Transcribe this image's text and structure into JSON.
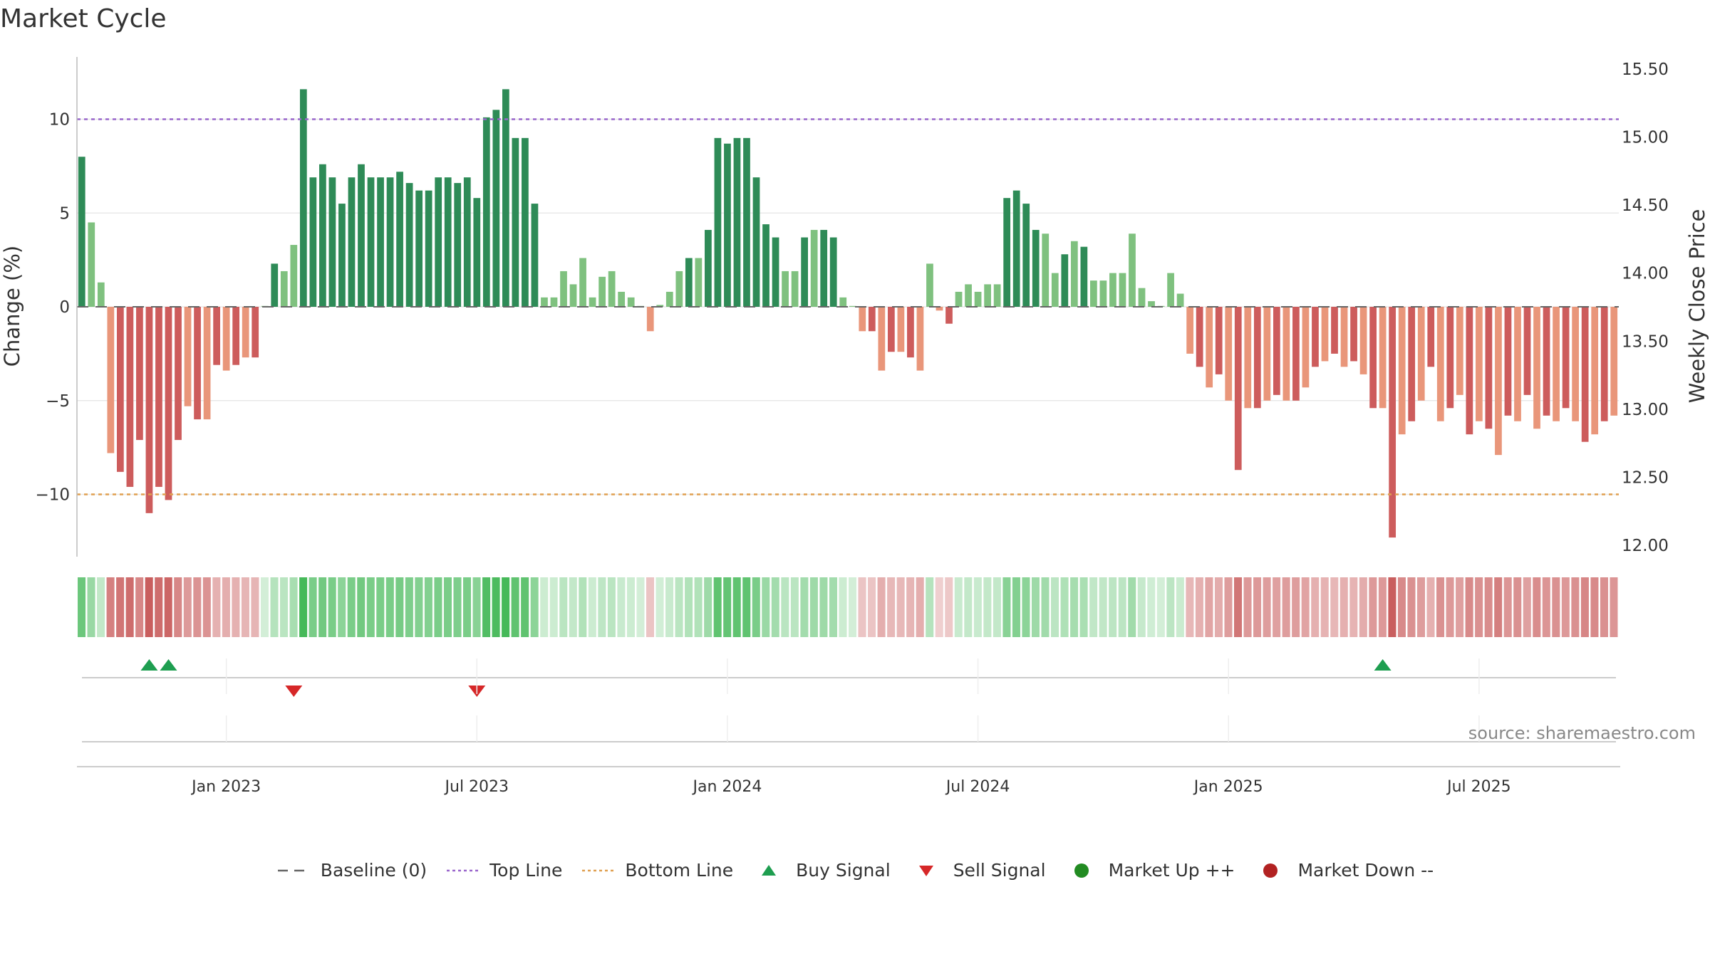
{
  "title": "Market Cycle",
  "source": "source: sharemaestro.com",
  "colors": {
    "strong_up": "#2e8b57",
    "weak_up": "#7fc17f",
    "strong_down": "#cd5c5c",
    "weak_down": "#e9967a",
    "top_line": "#9966cc",
    "bottom_line": "#e0a050",
    "baseline": "#666666",
    "buy": "#1e9e50",
    "sell": "#d62728",
    "market_up": "#228b22",
    "market_down": "#b22222"
  },
  "legend": [
    {
      "label": "Baseline (0)",
      "symbol": "dash-line",
      "color": "#666666"
    },
    {
      "label": "Top Line",
      "symbol": "dot-line",
      "color": "#9966cc"
    },
    {
      "label": "Bottom Line",
      "symbol": "dot-line",
      "color": "#e0a050"
    },
    {
      "label": "Buy Signal",
      "symbol": "triangle-up",
      "color": "#1e9e50"
    },
    {
      "label": "Sell Signal",
      "symbol": "triangle-down",
      "color": "#d62728"
    },
    {
      "label": "Market Up ++",
      "symbol": "circle",
      "color": "#228b22"
    },
    {
      "label": "Market Down --",
      "symbol": "circle",
      "color": "#b22222"
    }
  ],
  "chart_data": {
    "type": "bar",
    "title": "Market Cycle",
    "ylabel": "Change (%)",
    "y2label": "Weekly Close Price",
    "ylim": [
      -13,
      13
    ],
    "yticks": [
      10,
      5,
      0,
      -5,
      -10
    ],
    "ytick_labels": [
      "10",
      "5",
      "0",
      "−5",
      "−10"
    ],
    "y2lim": [
      12.0,
      15.5
    ],
    "y2ticks": [
      15.5,
      15.0,
      14.5,
      14.0,
      13.5,
      13.0,
      12.5,
      12.0
    ],
    "y2tick_labels": [
      "15.50",
      "15.00",
      "14.50",
      "14.00",
      "13.50",
      "13.00",
      "12.50",
      "12.00"
    ],
    "top_line": 10,
    "bottom_line": -10,
    "baseline": 0,
    "xticks": [
      {
        "label": "Jan 2023",
        "index": 15
      },
      {
        "label": "Jul 2023",
        "index": 41
      },
      {
        "label": "Jan 2024",
        "index": 67
      },
      {
        "label": "Jul 2024",
        "index": 93
      },
      {
        "label": "Jan 2025",
        "index": 119
      },
      {
        "label": "Jul 2025",
        "index": 145
      }
    ],
    "values": [
      8,
      4.5,
      1.3,
      -7.8,
      -8.8,
      -9.6,
      -7.1,
      -11,
      -9.6,
      -10.3,
      -7.1,
      -5.3,
      -6,
      -6,
      -3.1,
      -3.4,
      -3.1,
      -2.7,
      -2.7,
      0,
      2.3,
      1.9,
      3.3,
      11.6,
      6.9,
      7.6,
      6.9,
      5.5,
      6.9,
      7.6,
      6.9,
      6.9,
      6.9,
      7.2,
      6.6,
      6.2,
      6.2,
      6.9,
      6.9,
      6.6,
      6.9,
      5.8,
      10.1,
      10.5,
      11.6,
      9,
      9,
      5.5,
      0.5,
      0.5,
      1.9,
      1.2,
      2.6,
      0.5,
      1.6,
      1.9,
      0.8,
      0.5,
      0,
      -1.3,
      0.1,
      0.8,
      1.9,
      2.6,
      2.6,
      4.1,
      9,
      8.7,
      9,
      9,
      6.9,
      4.4,
      3.7,
      1.9,
      1.9,
      3.7,
      4.1,
      4.1,
      3.7,
      0.5,
      0,
      -1.3,
      -1.3,
      -3.4,
      -2.4,
      -2.4,
      -2.7,
      -3.4,
      2.3,
      -0.2,
      -0.9,
      0.8,
      1.2,
      0.8,
      1.2,
      1.2,
      5.8,
      6.2,
      5.5,
      4.1,
      3.9,
      1.8,
      2.8,
      3.5,
      3.2,
      1.4,
      1.4,
      1.8,
      1.8,
      3.9,
      1,
      0.3,
      0,
      1.8,
      0.7,
      -2.5,
      -3.2,
      -4.3,
      -3.6,
      -5,
      -8.7,
      -5.4,
      -5.4,
      -5,
      -4.7,
      -5,
      -5,
      -4.3,
      -3.2,
      -2.9,
      -2.5,
      -3.2,
      -2.9,
      -3.6,
      -5.4,
      -5.4,
      -12.3,
      -6.8,
      -6.1,
      -5,
      -3.2,
      -6.1,
      -5.4,
      -4.7,
      -6.8,
      -6.1,
      -6.5,
      -7.9,
      -5.8,
      -6.1,
      -4.7,
      -6.5,
      -5.8,
      -6.1,
      -5.4,
      -6.1,
      -7.2,
      -6.8,
      -6.1,
      -5.8
    ],
    "heat_strip": "Color-coded band: green intensity for up weeks, red intensity for down weeks",
    "buy_signals": [
      7,
      9,
      135
    ],
    "sell_signals": [
      22,
      41
    ]
  }
}
